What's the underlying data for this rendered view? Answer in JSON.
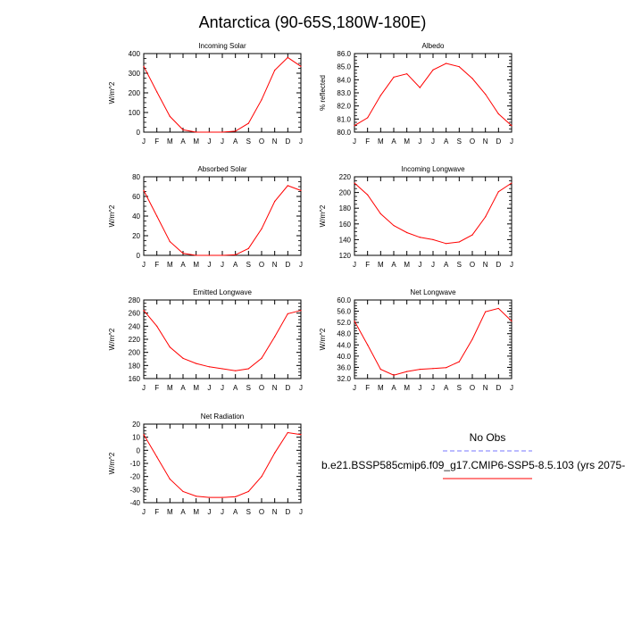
{
  "title": "Antarctica (90-65S,180W-180E)",
  "months": [
    "J",
    "F",
    "M",
    "A",
    "M",
    "J",
    "J",
    "A",
    "S",
    "O",
    "N",
    "D",
    "J"
  ],
  "line_color": "#ff0000",
  "obs_color": "#7777ff",
  "legend": {
    "obs_label": "No Obs",
    "case_label": "b.e21.BSSP585cmip6.f09_g17.CMIP6-SSP5-8.5.103 (yrs 2075-"
  },
  "chart_data": [
    {
      "type": "line",
      "title": "Incoming Solar",
      "ylabel": "W/m^2",
      "ylim": [
        0,
        400
      ],
      "yticks": [
        "0",
        "100",
        "200",
        "300",
        "400"
      ],
      "x": [
        "J",
        "F",
        "M",
        "A",
        "M",
        "J",
        "J",
        "A",
        "S",
        "O",
        "N",
        "D",
        "J"
      ],
      "series": [
        {
          "values": [
            335,
            205,
            80,
            12,
            0,
            0,
            0,
            5,
            45,
            165,
            315,
            380,
            335
          ]
        }
      ]
    },
    {
      "type": "line",
      "title": "Albedo",
      "ylabel": "% reflected",
      "ylim": [
        80,
        86
      ],
      "yticks": [
        "80.0",
        "81.0",
        "82.0",
        "83.0",
        "84.0",
        "85.0",
        "86.0"
      ],
      "x": [
        "J",
        "F",
        "M",
        "A",
        "M",
        "J",
        "J",
        "A",
        "S",
        "O",
        "N",
        "D",
        "J"
      ],
      "series": [
        {
          "values": [
            80.5,
            81.1,
            82.8,
            84.2,
            84.45,
            83.4,
            84.75,
            85.25,
            85.0,
            84.1,
            82.9,
            81.4,
            80.5
          ]
        }
      ]
    },
    {
      "type": "line",
      "title": "Absorbed Solar",
      "ylabel": "W/m^2",
      "ylim": [
        0,
        80
      ],
      "yticks": [
        "0",
        "20",
        "40",
        "60",
        "80"
      ],
      "x": [
        "J",
        "F",
        "M",
        "A",
        "M",
        "J",
        "J",
        "A",
        "S",
        "O",
        "N",
        "D",
        "J"
      ],
      "series": [
        {
          "values": [
            66,
            40,
            14,
            2,
            0,
            0,
            0,
            0.5,
            7,
            27,
            55,
            71,
            66
          ]
        }
      ]
    },
    {
      "type": "line",
      "title": "Incoming Longwave",
      "ylabel": "W/m^2",
      "ylim": [
        120,
        220
      ],
      "yticks": [
        "120",
        "140",
        "160",
        "180",
        "200",
        "220"
      ],
      "x": [
        "J",
        "F",
        "M",
        "A",
        "M",
        "J",
        "J",
        "A",
        "S",
        "O",
        "N",
        "D",
        "J"
      ],
      "series": [
        {
          "values": [
            212,
            197,
            173,
            158,
            149,
            143,
            140,
            135,
            137,
            146,
            169,
            201,
            212
          ]
        }
      ]
    },
    {
      "type": "line",
      "title": "Emitted Longwave",
      "ylabel": "W/m^2",
      "ylim": [
        160,
        280
      ],
      "yticks": [
        "160",
        "180",
        "200",
        "220",
        "240",
        "260",
        "280"
      ],
      "x": [
        "J",
        "F",
        "M",
        "A",
        "M",
        "J",
        "J",
        "A",
        "S",
        "O",
        "N",
        "D",
        "J"
      ],
      "series": [
        {
          "values": [
            264,
            240,
            208,
            191,
            183,
            178,
            175,
            172,
            175,
            191,
            224,
            259,
            264
          ]
        }
      ]
    },
    {
      "type": "line",
      "title": "Net Longwave",
      "ylabel": "W/m^2",
      "ylim": [
        32,
        60
      ],
      "yticks": [
        "32.0",
        "36.0",
        "40.0",
        "44.0",
        "48.0",
        "52.0",
        "56.0",
        "60.0"
      ],
      "x": [
        "J",
        "F",
        "M",
        "A",
        "M",
        "J",
        "J",
        "A",
        "S",
        "O",
        "N",
        "D",
        "J"
      ],
      "series": [
        {
          "values": [
            52.5,
            44.0,
            35.3,
            33.2,
            34.5,
            35.3,
            35.6,
            35.9,
            38.0,
            46.0,
            55.8,
            57.0,
            52.5
          ]
        }
      ]
    },
    {
      "type": "line",
      "title": "Net Radiation",
      "ylabel": "W/m^2",
      "ylim": [
        -40,
        20
      ],
      "yticks": [
        "-40",
        "-30",
        "-20",
        "-10",
        "0",
        "10",
        "20"
      ],
      "x": [
        "J",
        "F",
        "M",
        "A",
        "M",
        "J",
        "J",
        "A",
        "S",
        "O",
        "N",
        "D",
        "J"
      ],
      "series": [
        {
          "values": [
            12,
            -5,
            -22,
            -31.5,
            -35,
            -36,
            -36,
            -35.5,
            -31.5,
            -20,
            -2,
            13.5,
            12
          ]
        }
      ]
    }
  ]
}
